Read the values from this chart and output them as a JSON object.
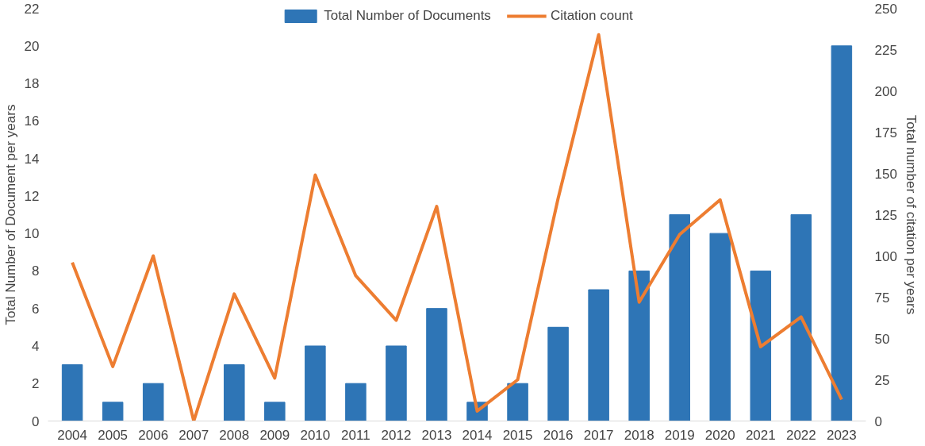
{
  "chart_data": {
    "type": "bar",
    "categories": [
      "2004",
      "2005",
      "2006",
      "2007",
      "2008",
      "2009",
      "2010",
      "2011",
      "2012",
      "2013",
      "2014",
      "2015",
      "2016",
      "2017",
      "2018",
      "2019",
      "2020",
      "2021",
      "2022",
      "2023"
    ],
    "ylabel": "Total Number of Document per years",
    "y2label": "Total number of citation per years",
    "ylim": [
      0,
      22
    ],
    "yticks": [
      0,
      2,
      4,
      6,
      8,
      10,
      12,
      14,
      16,
      18,
      20,
      22
    ],
    "y2lim": [
      0,
      250
    ],
    "y2ticks": [
      0,
      25,
      50,
      75,
      100,
      125,
      150,
      175,
      200,
      225,
      250
    ],
    "legend": "top",
    "grid": false,
    "series": [
      {
        "name": "Total Number of Documents",
        "type": "bar",
        "color": "#2e75b6",
        "values": [
          3,
          1,
          2,
          0,
          3,
          1,
          4,
          2,
          4,
          6,
          1,
          2,
          5,
          7,
          8,
          11,
          10,
          8,
          11,
          20
        ]
      },
      {
        "name": "Citation count",
        "type": "line",
        "axis": "y2",
        "color": "#ed7d31",
        "values": [
          96,
          33,
          100,
          0,
          77,
          26,
          149,
          88,
          61,
          130,
          6,
          25,
          135,
          234,
          72,
          113,
          134,
          45,
          63,
          13
        ]
      }
    ]
  }
}
